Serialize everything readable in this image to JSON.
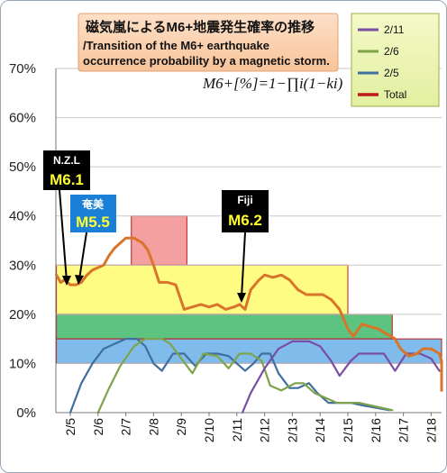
{
  "chart_data": {
    "type": "line",
    "title": "磁気嵐によるM6+地震発生確率の推移",
    "subtitle_line1": "/Transition of the M6+ earthquake",
    "subtitle_line2": "occurrence probability by a magnetic storm.",
    "formula": "M6+[%]=1−∏i(1−ki)",
    "ylim": [
      0,
      70
    ],
    "y_ticks": [
      "0%",
      "10%",
      "20%",
      "30%",
      "40%",
      "50%",
      "60%",
      "70%"
    ],
    "x_ticks": [
      "2/5",
      "2/6",
      "2/7",
      "2/8",
      "2/9",
      "2/10",
      "2/11",
      "2/12",
      "2/13",
      "2/14",
      "2/15",
      "2/16",
      "2/17",
      "2/18"
    ],
    "xlim": [
      0,
      14.6
    ],
    "legend": [
      "2/11",
      "2/6",
      "2/5",
      "Total"
    ],
    "colors": {
      "s211": "#7a4ea3",
      "s26": "#7fa34a",
      "s25": "#3f6f9e",
      "total": "#c01a1a",
      "total_line": "#d9752a"
    },
    "series": [
      {
        "name": "2/11",
        "color": "#7a4ea3",
        "points": [
          [
            6.2,
            0
          ],
          [
            6.5,
            4
          ],
          [
            7.0,
            9
          ],
          [
            7.5,
            13
          ],
          [
            8.0,
            14.5
          ],
          [
            8.6,
            14.5
          ],
          [
            9.0,
            13.5
          ],
          [
            9.4,
            10.5
          ],
          [
            9.7,
            7.5
          ],
          [
            10.1,
            10.5
          ],
          [
            10.4,
            12
          ],
          [
            10.9,
            12
          ],
          [
            11.3,
            12
          ],
          [
            11.7,
            8.5
          ],
          [
            12.1,
            12
          ],
          [
            12.6,
            12
          ],
          [
            13.0,
            11
          ],
          [
            13.3,
            8.5
          ]
        ]
      },
      {
        "name": "2/6",
        "color": "#7fa34a",
        "points": [
          [
            1.0,
            0
          ],
          [
            1.4,
            5
          ],
          [
            1.8,
            9.5
          ],
          [
            2.3,
            13.5
          ],
          [
            2.7,
            15
          ],
          [
            3.3,
            15
          ],
          [
            3.6,
            14
          ],
          [
            4.0,
            11
          ],
          [
            4.4,
            8
          ],
          [
            4.8,
            12
          ],
          [
            5.3,
            11.5
          ],
          [
            5.7,
            9
          ],
          [
            6.1,
            12
          ],
          [
            6.5,
            12
          ],
          [
            6.9,
            10.5
          ],
          [
            7.2,
            5.5
          ],
          [
            7.6,
            4.5
          ],
          [
            8.1,
            6
          ],
          [
            8.4,
            6
          ],
          [
            8.8,
            4
          ],
          [
            9.2,
            3
          ],
          [
            9.6,
            2
          ],
          [
            10.1,
            2
          ],
          [
            10.4,
            2
          ],
          [
            10.8,
            1.5
          ],
          [
            11.2,
            1
          ],
          [
            11.6,
            0.5
          ]
        ]
      },
      {
        "name": "2/5",
        "color": "#3f6f9e",
        "points": [
          [
            0.0,
            0
          ],
          [
            0.4,
            6
          ],
          [
            0.8,
            10
          ],
          [
            1.2,
            13
          ],
          [
            1.6,
            14
          ],
          [
            2.0,
            15
          ],
          [
            2.4,
            15
          ],
          [
            2.7,
            13.5
          ],
          [
            3.0,
            10
          ],
          [
            3.3,
            8.5
          ],
          [
            3.7,
            12
          ],
          [
            4.1,
            12
          ],
          [
            4.5,
            9.5
          ],
          [
            4.9,
            12
          ],
          [
            5.3,
            12
          ],
          [
            5.7,
            11.5
          ],
          [
            6.0,
            10
          ],
          [
            6.3,
            8.5
          ],
          [
            6.6,
            10
          ],
          [
            6.9,
            12
          ],
          [
            7.2,
            12
          ],
          [
            7.5,
            8
          ],
          [
            7.9,
            5
          ],
          [
            8.2,
            5
          ],
          [
            8.6,
            6
          ],
          [
            8.9,
            4
          ],
          [
            9.3,
            2
          ],
          [
            9.7,
            2
          ],
          [
            10.1,
            2
          ],
          [
            10.5,
            1.5
          ],
          [
            11.0,
            1
          ],
          [
            11.5,
            0.5
          ]
        ]
      },
      {
        "name": "Total",
        "color": "#d9752a",
        "points": [
          [
            -0.5,
            28
          ],
          [
            -0.35,
            26.5
          ],
          [
            -0.2,
            27
          ],
          [
            0.0,
            26
          ],
          [
            0.2,
            26
          ],
          [
            0.4,
            26.5
          ],
          [
            0.6,
            28
          ],
          [
            0.8,
            29
          ],
          [
            1.0,
            29.5
          ],
          [
            1.2,
            30
          ],
          [
            1.4,
            32
          ],
          [
            1.6,
            33.5
          ],
          [
            1.8,
            34.5
          ],
          [
            2.0,
            35.5
          ],
          [
            2.3,
            35.5
          ],
          [
            2.6,
            34.5
          ],
          [
            2.8,
            33
          ],
          [
            3.0,
            30
          ],
          [
            3.2,
            26.5
          ],
          [
            3.5,
            26.5
          ],
          [
            3.8,
            26
          ],
          [
            4.1,
            21
          ],
          [
            4.4,
            21.5
          ],
          [
            4.7,
            22
          ],
          [
            5.0,
            21.5
          ],
          [
            5.3,
            22
          ],
          [
            5.6,
            21
          ],
          [
            5.9,
            21.5
          ],
          [
            6.1,
            22
          ],
          [
            6.3,
            21
          ],
          [
            6.5,
            25
          ],
          [
            6.8,
            27
          ],
          [
            7.0,
            28
          ],
          [
            7.3,
            27.5
          ],
          [
            7.6,
            28
          ],
          [
            7.9,
            27
          ],
          [
            8.2,
            25
          ],
          [
            8.5,
            24
          ],
          [
            8.8,
            24
          ],
          [
            9.1,
            24
          ],
          [
            9.4,
            23
          ],
          [
            9.7,
            21
          ],
          [
            10.0,
            17
          ],
          [
            10.2,
            15.5
          ],
          [
            10.5,
            18
          ],
          [
            10.8,
            17.5
          ],
          [
            11.1,
            17
          ],
          [
            11.4,
            16
          ],
          [
            11.7,
            15
          ],
          [
            11.9,
            13
          ],
          [
            12.2,
            11.5
          ],
          [
            12.5,
            12
          ],
          [
            12.7,
            13
          ],
          [
            13.0,
            13
          ],
          [
            13.3,
            12
          ],
          [
            13.6,
            10.5
          ],
          [
            13.9,
            8.5
          ],
          [
            14.1,
            6
          ],
          [
            14.3,
            4.5
          ],
          [
            14.6,
            4.5
          ]
        ]
      }
    ],
    "bands": [
      {
        "from": 2.2,
        "to": 4.2,
        "y0": 30,
        "y1": 40,
        "fill": "#f08080",
        "stroke": "#c01a1a",
        "opacity": 0.75
      },
      {
        "from": -0.5,
        "to": 10.0,
        "y0": 20,
        "y1": 30,
        "fill": "#fffb6e",
        "stroke": "#c01a1a",
        "opacity": 0.85
      },
      {
        "from": -0.5,
        "to": 11.6,
        "y0": 15,
        "y1": 20,
        "fill": "#40b86a",
        "stroke": "#c01a1a",
        "opacity": 0.85
      },
      {
        "from": -0.5,
        "to": 14.1,
        "y0": 10,
        "y1": 15,
        "fill": "#6ab0e8",
        "stroke": "#c01a1a",
        "opacity": 0.85
      }
    ],
    "annotations": [
      {
        "label1": "N.Z.L",
        "label2": "M6.1",
        "bg": "#000000",
        "c1": "#ffffff",
        "c2": "#ffff33"
      },
      {
        "label1": "奄美",
        "label2": "M5.5",
        "bg": "#1a7fd6",
        "c1": "#ffffff",
        "c2": "#ffff33"
      },
      {
        "label1": "Fiji",
        "label2": "M6.2",
        "bg": "#000000",
        "c1": "#ffffff",
        "c2": "#ffff33"
      }
    ]
  }
}
